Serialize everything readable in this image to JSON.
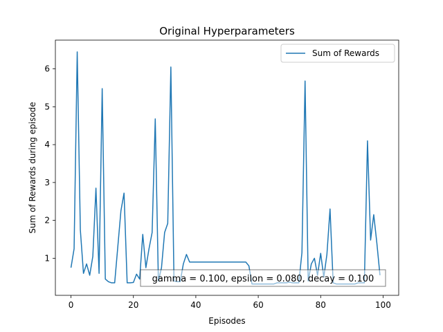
{
  "chart_data": {
    "type": "line",
    "title": "Original Hyperparameters",
    "xlabel": "Episodes",
    "ylabel": "Sum of Rewards during episode",
    "xlim": [
      -5,
      105
    ],
    "ylim": [
      0.02,
      6.76
    ],
    "xticks": [
      0,
      20,
      40,
      60,
      80,
      100
    ],
    "yticks": [
      1,
      2,
      3,
      4,
      5,
      6
    ],
    "legend_position": "upper-right",
    "annotation": "gamma = 0.100, epsilon = 0.080, decay = 0.100",
    "series": [
      {
        "name": "Sum of Rewards",
        "color": "#1f77b4",
        "x": [
          0,
          1,
          2,
          3,
          4,
          5,
          6,
          7,
          8,
          9,
          10,
          11,
          12,
          13,
          14,
          15,
          16,
          17,
          18,
          19,
          20,
          21,
          22,
          23,
          24,
          25,
          26,
          27,
          28,
          29,
          30,
          31,
          32,
          33,
          34,
          35,
          36,
          37,
          38,
          39,
          40,
          41,
          42,
          43,
          44,
          45,
          46,
          47,
          48,
          49,
          50,
          51,
          52,
          53,
          54,
          55,
          56,
          57,
          58,
          59,
          60,
          61,
          62,
          63,
          64,
          65,
          66,
          67,
          68,
          69,
          70,
          71,
          72,
          73,
          74,
          75,
          76,
          77,
          78,
          79,
          80,
          81,
          82,
          83,
          84,
          85,
          86,
          87,
          88,
          89,
          90,
          91,
          92,
          93,
          94,
          95,
          96,
          97,
          98,
          99
        ],
        "values": [
          0.75,
          1.25,
          6.45,
          1.75,
          0.6,
          0.85,
          0.55,
          1.05,
          2.85,
          0.6,
          5.48,
          0.45,
          0.38,
          0.35,
          0.35,
          1.3,
          2.25,
          2.72,
          0.35,
          0.35,
          0.36,
          0.58,
          0.45,
          1.63,
          0.75,
          1.25,
          1.68,
          4.68,
          0.4,
          0.75,
          1.68,
          1.92,
          6.05,
          0.4,
          0.38,
          0.38,
          0.85,
          1.1,
          0.9,
          0.9,
          0.9,
          0.9,
          0.9,
          0.9,
          0.9,
          0.9,
          0.9,
          0.9,
          0.9,
          0.9,
          0.9,
          0.9,
          0.9,
          0.9,
          0.9,
          0.9,
          0.9,
          0.8,
          0.32,
          0.32,
          0.32,
          0.32,
          0.32,
          0.32,
          0.32,
          0.32,
          0.35,
          0.35,
          0.35,
          0.35,
          0.37,
          0.35,
          0.35,
          0.35,
          1.15,
          5.68,
          0.4,
          0.85,
          1.0,
          0.55,
          1.13,
          0.5,
          1.1,
          2.3,
          0.35,
          0.32,
          0.32,
          0.32,
          0.32,
          0.32,
          0.32,
          0.32,
          0.35,
          0.35,
          0.35,
          4.1,
          1.48,
          2.15,
          1.4,
          0.55
        ]
      }
    ]
  }
}
